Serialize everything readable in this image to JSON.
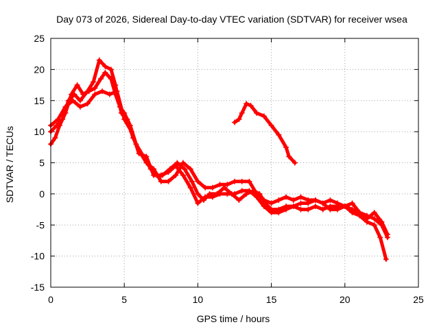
{
  "chart_data": {
    "type": "scatter",
    "title": "Day 073 of 2026, Sidereal Day-to-day VTEC variation (SDTVAR) for receiver wsea",
    "xlabel": "GPS time / hours",
    "ylabel": "SDTVAR / TECUs",
    "xlim": [
      0,
      25
    ],
    "ylim": [
      -15,
      25
    ],
    "xticks": [
      "0",
      "5",
      "10",
      "15",
      "20",
      "25"
    ],
    "yticks": [
      "-15",
      "-10",
      "-5",
      "0",
      "5",
      "10",
      "15",
      "20",
      "25"
    ],
    "grid": true,
    "color": "#ff0000",
    "marker": "plus",
    "series": [
      {
        "name": "track-1",
        "points": [
          [
            0,
            8
          ],
          [
            0.3,
            9
          ],
          [
            0.6,
            11
          ],
          [
            1,
            13
          ],
          [
            1.4,
            16
          ],
          [
            1.8,
            17.5
          ],
          [
            2.2,
            16
          ],
          [
            2.6,
            16.5
          ],
          [
            3,
            17
          ],
          [
            3.4,
            18.5
          ],
          [
            3.7,
            19.5
          ],
          [
            4.1,
            18.5
          ],
          [
            4.4,
            16
          ],
          [
            4.7,
            14
          ],
          [
            5,
            13
          ],
          [
            5.4,
            11
          ],
          [
            5.8,
            8
          ],
          [
            6.3,
            6
          ],
          [
            6.8,
            4
          ],
          [
            7.2,
            3
          ],
          [
            7.6,
            3
          ],
          [
            8.1,
            4
          ],
          [
            8.6,
            5
          ],
          [
            9.1,
            4
          ],
          [
            9.6,
            2
          ],
          [
            10,
            0
          ],
          [
            10.4,
            -1
          ],
          [
            10.8,
            0
          ],
          [
            11.3,
            0
          ],
          [
            11.8,
            1
          ],
          [
            12.3,
            0
          ],
          [
            12.8,
            -1
          ],
          [
            13.3,
            0
          ],
          [
            13.8,
            0.5
          ],
          [
            14.2,
            0
          ],
          [
            14.6,
            -1.5
          ],
          [
            15,
            -2.5
          ],
          [
            15.5,
            -2.5
          ],
          [
            16,
            -2
          ],
          [
            16.5,
            -2
          ],
          [
            17,
            -2.5
          ],
          [
            17.5,
            -2.5
          ],
          [
            18,
            -2
          ],
          [
            18.5,
            -2.5
          ],
          [
            19,
            -2
          ],
          [
            19.5,
            -2
          ],
          [
            20,
            -2
          ],
          [
            20.5,
            -3
          ],
          [
            21,
            -3.5
          ],
          [
            21.5,
            -4.5
          ],
          [
            22,
            -5
          ],
          [
            22.4,
            -7
          ],
          [
            22.8,
            -10.5
          ]
        ]
      },
      {
        "name": "track-2",
        "points": [
          [
            0,
            10
          ],
          [
            0.4,
            11
          ],
          [
            0.8,
            12
          ],
          [
            1.2,
            15
          ],
          [
            1.6,
            16
          ],
          [
            2,
            15
          ],
          [
            2.5,
            16.5
          ],
          [
            2.9,
            18
          ],
          [
            3.3,
            21.5
          ],
          [
            3.7,
            20.5
          ],
          [
            4.1,
            20
          ],
          [
            4.4,
            17.5
          ],
          [
            4.8,
            13
          ],
          [
            5.2,
            12
          ],
          [
            5.6,
            9
          ],
          [
            6,
            7
          ],
          [
            6.5,
            5
          ],
          [
            7,
            4
          ],
          [
            7.5,
            2
          ],
          [
            8,
            2
          ],
          [
            8.5,
            3
          ],
          [
            9,
            5
          ],
          [
            9.5,
            4
          ],
          [
            10,
            2
          ],
          [
            10.5,
            1
          ],
          [
            11,
            1
          ],
          [
            11.5,
            1.5
          ],
          [
            12,
            1.5
          ],
          [
            12.5,
            2
          ],
          [
            13,
            2
          ],
          [
            13.5,
            2
          ],
          [
            14,
            0
          ],
          [
            14.5,
            -1
          ],
          [
            15,
            -1.5
          ],
          [
            15.5,
            -1
          ],
          [
            16,
            -0.5
          ],
          [
            16.5,
            -1
          ],
          [
            17,
            -0.5
          ],
          [
            17.5,
            -1
          ],
          [
            18,
            -1
          ],
          [
            18.5,
            -1.5
          ],
          [
            19,
            -1
          ],
          [
            19.5,
            -1.5
          ],
          [
            20,
            -2
          ],
          [
            20.5,
            -2.5
          ],
          [
            21,
            -3
          ],
          [
            21.5,
            -3.5
          ],
          [
            22,
            -4
          ],
          [
            22.5,
            -5
          ],
          [
            22.9,
            -7
          ]
        ]
      },
      {
        "name": "track-3",
        "points": [
          [
            0,
            11
          ],
          [
            0.5,
            12
          ],
          [
            1,
            14
          ],
          [
            1.5,
            15
          ],
          [
            2,
            14
          ],
          [
            2.5,
            14.5
          ],
          [
            3,
            16
          ],
          [
            3.5,
            16.5
          ],
          [
            4,
            16
          ],
          [
            4.5,
            16.5
          ],
          [
            5,
            12
          ],
          [
            5.5,
            10
          ],
          [
            6,
            6.5
          ],
          [
            6.5,
            6
          ],
          [
            7,
            3
          ],
          [
            7.5,
            3
          ],
          [
            8,
            3.5
          ],
          [
            8.5,
            4.5
          ],
          [
            9,
            3
          ],
          [
            9.5,
            1
          ],
          [
            10,
            -1.5
          ],
          [
            10.5,
            -0.5
          ],
          [
            11,
            -0.5
          ],
          [
            11.5,
            0
          ],
          [
            12,
            0
          ],
          [
            12.5,
            0
          ],
          [
            13,
            0.5
          ],
          [
            13.5,
            0.5
          ],
          [
            14,
            -0.5
          ],
          [
            14.5,
            -2
          ],
          [
            15,
            -3
          ],
          [
            15.5,
            -3
          ],
          [
            16,
            -2.5
          ],
          [
            16.5,
            -2
          ],
          [
            17,
            -1.5
          ],
          [
            17.5,
            -1.5
          ],
          [
            18,
            -1
          ],
          [
            18.5,
            -1.5
          ],
          [
            19,
            -2.5
          ],
          [
            19.5,
            -2.5
          ],
          [
            20,
            -2
          ],
          [
            20.5,
            -1.5
          ],
          [
            21,
            -3
          ],
          [
            21.5,
            -4
          ],
          [
            22,
            -3
          ],
          [
            22.5,
            -4.5
          ],
          [
            22.9,
            -6.5
          ]
        ]
      },
      {
        "name": "track-4",
        "points": [
          [
            12.5,
            11.5
          ],
          [
            12.8,
            12
          ],
          [
            13,
            13
          ],
          [
            13.3,
            14.5
          ],
          [
            13.6,
            14.2
          ],
          [
            14,
            13
          ],
          [
            14.5,
            12.5
          ],
          [
            15,
            11
          ],
          [
            15.5,
            9.5
          ],
          [
            16,
            7.5
          ],
          [
            16.2,
            6
          ],
          [
            16.6,
            5
          ]
        ]
      }
    ]
  }
}
